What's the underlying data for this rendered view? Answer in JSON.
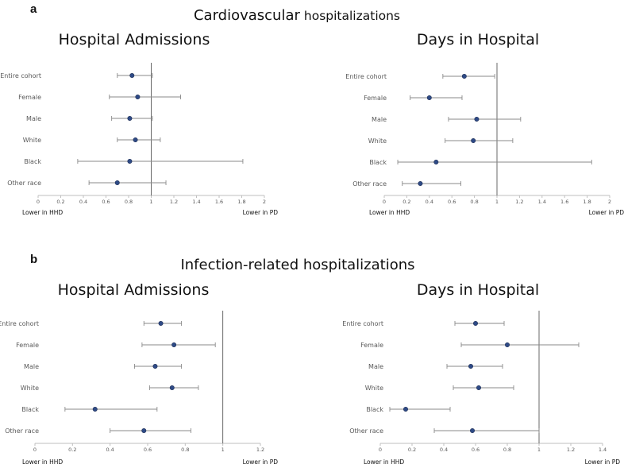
{
  "panel_a": {
    "label": "a",
    "title_main": "Cardiovascular",
    "title_suffix": "hospitalizations"
  },
  "panel_b": {
    "label": "b",
    "title": "Infection-related hospitalizations"
  },
  "colors": {
    "marker": "#2e4a86",
    "marker_edge": "#1f2f55",
    "line": "#8a8a8a",
    "axis": "#bfbfbf",
    "refline": "#595959"
  },
  "chart_data": [
    {
      "id": "a_admissions",
      "type": "forest",
      "title": "Hospital Admissions",
      "categories": [
        "Entire cohort",
        "Female",
        "Male",
        "White",
        "Black",
        "Other race"
      ],
      "estimates": [
        0.83,
        0.88,
        0.81,
        0.86,
        0.81,
        0.7
      ],
      "lower": [
        0.7,
        0.63,
        0.65,
        0.7,
        0.35,
        0.45
      ],
      "upper": [
        1.01,
        1.26,
        1.01,
        1.08,
        1.81,
        1.13
      ],
      "xlim": [
        0,
        2
      ],
      "ref": 1,
      "ticks": [
        "0",
        "0.2",
        "0.4",
        "0.6",
        "0.8",
        "1",
        "1.2",
        "1.4",
        "1.6",
        "1.8",
        "2"
      ],
      "left_label": "Lower in HHD",
      "right_label": "Lower in PD"
    },
    {
      "id": "a_days",
      "type": "forest",
      "title": "Days in Hospital",
      "categories": [
        "Entire cohort",
        "Female",
        "Male",
        "White",
        "Black",
        "Other race"
      ],
      "estimates": [
        0.71,
        0.4,
        0.82,
        0.79,
        0.46,
        0.32
      ],
      "lower": [
        0.52,
        0.23,
        0.57,
        0.54,
        0.12,
        0.16
      ],
      "upper": [
        0.98,
        0.69,
        1.21,
        1.14,
        1.84,
        0.68
      ],
      "xlim": [
        0,
        2
      ],
      "ref": 1,
      "ticks": [
        "0",
        "0.2",
        "0.4",
        "0.6",
        "0.8",
        "1",
        "1.2",
        "1.4",
        "1.6",
        "1.8",
        "2"
      ],
      "left_label": "Lower in HHD",
      "right_label": "Lower in PD"
    },
    {
      "id": "b_admissions",
      "type": "forest",
      "title": "Hospital Admissions",
      "categories": [
        "Entire cohort",
        "Female",
        "Male",
        "White",
        "Black",
        "Other race"
      ],
      "estimates": [
        0.67,
        0.74,
        0.64,
        0.73,
        0.32,
        0.58
      ],
      "lower": [
        0.58,
        0.57,
        0.53,
        0.61,
        0.16,
        0.4
      ],
      "upper": [
        0.78,
        0.96,
        0.78,
        0.87,
        0.65,
        0.83
      ],
      "xlim": [
        0,
        1.2
      ],
      "ref": 1,
      "ticks": [
        "0",
        "0.2",
        "0.4",
        "0.6",
        "0.8",
        "1",
        "1.2"
      ],
      "left_label": "Lower in HHD",
      "right_label": "Lower in PD"
    },
    {
      "id": "b_days",
      "type": "forest",
      "title": "Days in Hospital",
      "categories": [
        "Entire cohort",
        "Female",
        "Male",
        "White",
        "Black",
        "Other race"
      ],
      "estimates": [
        0.6,
        0.8,
        0.57,
        0.62,
        0.16,
        0.58
      ],
      "lower": [
        0.47,
        0.51,
        0.42,
        0.46,
        0.06,
        0.34
      ],
      "upper": [
        0.78,
        1.25,
        0.77,
        0.84,
        0.44,
        1.0
      ],
      "xlim": [
        0,
        1.4
      ],
      "ref": 1,
      "ticks": [
        "0",
        "0.2",
        "0.4",
        "0.6",
        "0.8",
        "1",
        "1.2",
        "1.4"
      ],
      "left_label": "Lower in HHD",
      "right_label": "Lower in PD"
    }
  ]
}
